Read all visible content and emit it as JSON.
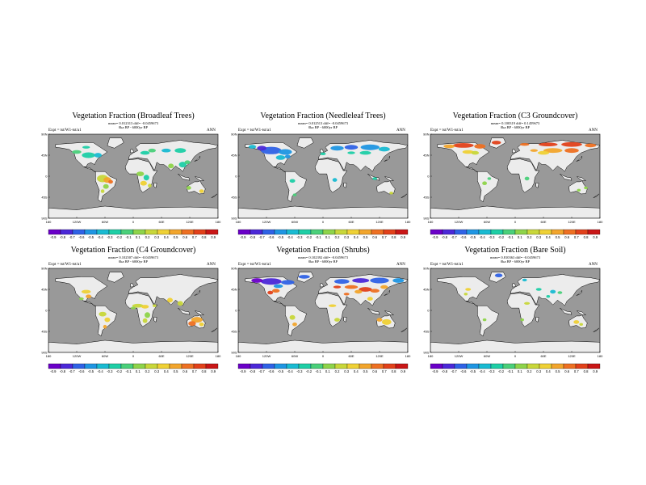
{
  "palette": [
    "#6a00c8",
    "#4b28d8",
    "#2f62e6",
    "#1f96e3",
    "#19bbd2",
    "#1ecfa6",
    "#4ad07a",
    "#8ed44a",
    "#c8d73a",
    "#efd135",
    "#f2a52c",
    "#ee7022",
    "#e2411a",
    "#c91616"
  ],
  "land_color": "#ececec",
  "ocean_color": "#999999",
  "panels": [
    {
      "id": "broadleaf",
      "title": "Vegetation Fraction (Broadleaf Trees)",
      "subtitle1": "mean= 0.012313 diff= -0.0459673",
      "subtitle2": "0ka BP - 6000yr BP",
      "expt_label": "Expt = tst/W1-tst/a1",
      "season": "ANN",
      "lat_ticks": [
        "90N",
        "45N",
        "0",
        "45S",
        "90S"
      ],
      "lon_ticks": [
        "180",
        "120W",
        "60W",
        "0",
        "60E",
        "120E",
        "180"
      ],
      "colorbar_labels": [
        "-0.9",
        "-0.8",
        "-0.7",
        "-0.6",
        "-0.5",
        "-0.4",
        "-0.3",
        "-0.2",
        "-0.1",
        "0.1",
        "0.2",
        "0.3",
        "0.4",
        "0.5",
        "0.6",
        "0.7",
        "0.8",
        "0.9"
      ]
    },
    {
      "id": "needleleaf",
      "title": "Vegetation Fraction (Needleleaf Trees)",
      "subtitle1": "mean= 0.012513 diff= -0.0459673",
      "subtitle2": "0ka BP - 6000yr BP",
      "expt_label": "Expt = tst/W1-tst/a1",
      "season": "ANN",
      "lat_ticks": [
        "90N",
        "45N",
        "0",
        "45S",
        "90S"
      ],
      "lon_ticks": [
        "180",
        "120W",
        "60W",
        "0",
        "60E",
        "120E",
        "180"
      ],
      "colorbar_labels": [
        "-0.9",
        "-0.8",
        "-0.7",
        "-0.6",
        "-0.5",
        "-0.4",
        "-0.3",
        "-0.2",
        "-0.1",
        "0.1",
        "0.2",
        "0.3",
        "0.4",
        "0.5",
        "0.6",
        "0.7",
        "0.8",
        "0.9"
      ]
    },
    {
      "id": "c3",
      "title": "Vegetation Fraction (C3 Groundcover)",
      "subtitle1": "mean= 0.100319 diff= 0.1459673",
      "subtitle2": "0ka BP - 6000yr BP",
      "expt_label": "Expt = tst/W1-tst/a1",
      "season": "ANN",
      "lat_ticks": [
        "90N",
        "45N",
        "0",
        "45S",
        "90S"
      ],
      "lon_ticks": [
        "180",
        "120W",
        "60W",
        "0",
        "60E",
        "120E",
        "180"
      ],
      "colorbar_labels": [
        "-0.9",
        "-0.8",
        "-0.7",
        "-0.6",
        "-0.5",
        "-0.4",
        "-0.3",
        "-0.2",
        "-0.1",
        "0.1",
        "0.2",
        "0.3",
        "0.4",
        "0.5",
        "0.6",
        "0.7",
        "0.8",
        "0.9"
      ]
    },
    {
      "id": "c4",
      "title": "Vegetation Fraction (C4 Groundcover)",
      "subtitle1": "mean= 0.102507 diff= -0.0459673",
      "subtitle2": "0ka BP - 6000yr BP",
      "expt_label": "Expt = tst/W1-tst/a1",
      "season": "ANN",
      "lat_ticks": [
        "90N",
        "45N",
        "0",
        "45S",
        "90S"
      ],
      "lon_ticks": [
        "180",
        "120W",
        "60W",
        "0",
        "60E",
        "120E",
        "180"
      ],
      "colorbar_labels": [
        "-0.9",
        "-0.8",
        "-0.7",
        "-0.6",
        "-0.5",
        "-0.4",
        "-0.3",
        "-0.2",
        "-0.1",
        "0.1",
        "0.2",
        "0.3",
        "0.4",
        "0.5",
        "0.6",
        "0.7",
        "0.8",
        "0.9"
      ]
    },
    {
      "id": "shrubs",
      "title": "Vegetation Fraction (Shrubs)",
      "subtitle1": "mean= 0.102392 diff= -0.0459673",
      "subtitle2": "0ka BP - 6000yr BP",
      "expt_label": "Expt = tst/W1-tst/a1",
      "season": "ANN",
      "lat_ticks": [
        "90N",
        "45N",
        "0",
        "45S",
        "90S"
      ],
      "lon_ticks": [
        "180",
        "120W",
        "60W",
        "0",
        "60E",
        "120E",
        "180"
      ],
      "colorbar_labels": [
        "-0.9",
        "-0.8",
        "-0.7",
        "-0.6",
        "-0.5",
        "-0.4",
        "-0.3",
        "-0.2",
        "-0.1",
        "0.1",
        "0.2",
        "0.3",
        "0.4",
        "0.5",
        "0.6",
        "0.7",
        "0.8",
        "0.9"
      ]
    },
    {
      "id": "baresoil",
      "title": "Vegetation Fraction (Bare Soil)",
      "subtitle1": "mean= 0.810363 diff= -0.0459673",
      "subtitle2": "0ka BP - 6000yr BP",
      "expt_label": "Expt = tst/W1-tst/a1",
      "season": "ANN",
      "lat_ticks": [
        "90N",
        "45N",
        "0",
        "45S",
        "90S"
      ],
      "lon_ticks": [
        "180",
        "120W",
        "60W",
        "0",
        "60E",
        "120E",
        "180"
      ],
      "colorbar_labels": [
        "-0.9",
        "-0.8",
        "-0.7",
        "-0.6",
        "-0.5",
        "-0.4",
        "-0.3",
        "-0.2",
        "-0.1",
        "0.1",
        "0.2",
        "0.3",
        "0.4",
        "0.5",
        "0.6",
        "0.7",
        "0.8",
        "0.9"
      ]
    }
  ]
}
